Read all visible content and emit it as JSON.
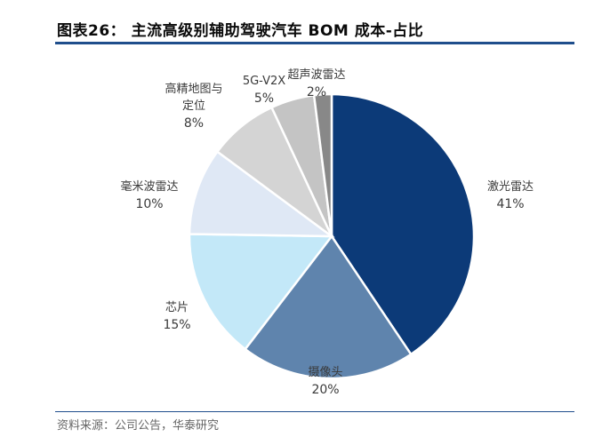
{
  "header": {
    "title": "图表26： 主流高级别辅助驾驶汽车 BOM 成本-占比"
  },
  "footer": {
    "source": "资料来源：公司公告，华泰研究"
  },
  "chart_data": {
    "type": "pie",
    "title": "图表26： 主流高级别辅助驾驶汽车 BOM 成本-占比",
    "slices": [
      {
        "label": "激光雷达",
        "value": 41,
        "value_label": "41%",
        "color": "#0c3a78"
      },
      {
        "label": "摄像头",
        "value": 20,
        "value_label": "20%",
        "color": "#5f84ad"
      },
      {
        "label": "芯片",
        "value": 15,
        "value_label": "15%",
        "color": "#c3e8f8"
      },
      {
        "label": "毫米波雷达",
        "value": 10,
        "value_label": "10%",
        "color": "#dfe8f5"
      },
      {
        "label": "高精地图与定位",
        "value": 8,
        "value_label": "8%",
        "color": "#d4d4d4"
      },
      {
        "label": "5G-V2X",
        "value": 5,
        "value_label": "5%",
        "color": "#c4c4c4"
      },
      {
        "label": "超声波雷达",
        "value": 2,
        "value_label": "2%",
        "color": "#888888"
      }
    ],
    "legend": "none",
    "start": "top-clockwise"
  }
}
